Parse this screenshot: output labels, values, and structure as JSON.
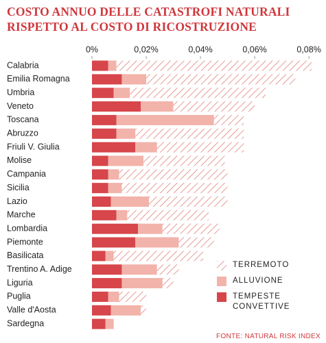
{
  "chart_data": {
    "type": "stacked-bar-horizontal",
    "title": "COSTO ANNUO DELLE CATASTROFI NATURALI RISPETTO AL COSTO DI RICOSTRUZIONE",
    "source": "FONTE: NATURAL RISK INDEX",
    "categories": [
      "Calabria",
      "Emilia Romagna",
      "Umbria",
      "Veneto",
      "Toscana",
      "Abruzzo",
      "Friuli V. Giulia",
      "Molise",
      "Campania",
      "Sicilia",
      "Lazio",
      "Marche",
      "Lombardia",
      "Piemonte",
      "Basilicata",
      "Trentino A. Adige",
      "Liguria",
      "Puglia",
      "Valle d'Aosta",
      "Sardegna"
    ],
    "series": [
      {
        "name": "TEMPESTE CONVETTIVE",
        "color": "#d6464a",
        "values": [
          0.006,
          0.011,
          0.008,
          0.018,
          0.009,
          0.009,
          0.016,
          0.006,
          0.006,
          0.006,
          0.007,
          0.009,
          0.017,
          0.016,
          0.005,
          0.011,
          0.011,
          0.006,
          0.007,
          0.005
        ]
      },
      {
        "name": "ALLUVIONE",
        "color": "#f2b3aa",
        "values": [
          0.003,
          0.009,
          0.006,
          0.012,
          0.036,
          0.007,
          0.008,
          0.013,
          0.004,
          0.005,
          0.014,
          0.004,
          0.009,
          0.016,
          0.003,
          0.013,
          0.015,
          0.004,
          0.011,
          0.003
        ]
      },
      {
        "name": "TERREMOTO",
        "color": "#e0817d",
        "hatch": true,
        "values": [
          0.072,
          0.055,
          0.05,
          0.03,
          0.011,
          0.04,
          0.032,
          0.03,
          0.04,
          0.039,
          0.029,
          0.03,
          0.021,
          0.013,
          0.033,
          0.008,
          0.004,
          0.01,
          0.002,
          0
        ]
      }
    ],
    "xlim": [
      0,
      0.082
    ],
    "xticks": [
      {
        "value": 0,
        "label": "0%"
      },
      {
        "value": 0.02,
        "label": "0,02%"
      },
      {
        "value": 0.04,
        "label": "0,04%"
      },
      {
        "value": 0.06,
        "label": "0,06%"
      },
      {
        "value": 0.08,
        "label": "0,08%"
      }
    ]
  }
}
